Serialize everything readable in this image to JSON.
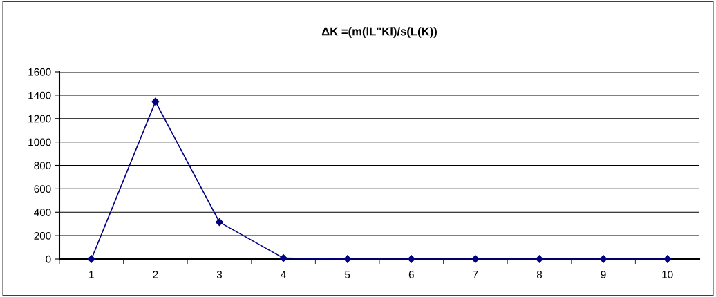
{
  "chart_data": {
    "type": "line",
    "title": "ΔK =(m(lL''Kl)/s(L(K))",
    "categories": [
      "1",
      "2",
      "3",
      "4",
      "5",
      "6",
      "7",
      "8",
      "9",
      "10"
    ],
    "series": [
      {
        "color": "#000080",
        "values": [
          0,
          1345,
          315,
          8,
          0,
          0,
          0,
          0,
          0,
          0
        ]
      }
    ],
    "ylim": [
      0,
      1600
    ],
    "yticks": [
      0,
      200,
      400,
      600,
      800,
      1000,
      1200,
      1400,
      1600
    ],
    "grid": "y",
    "marker": "diamond",
    "line_style": "solid"
  }
}
